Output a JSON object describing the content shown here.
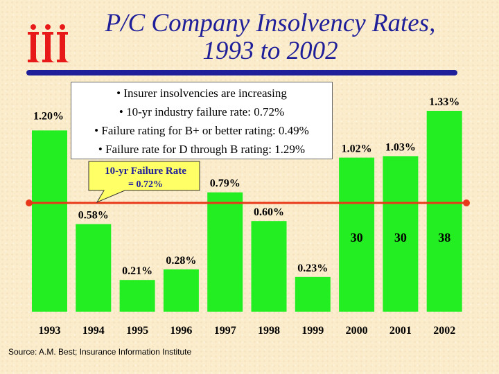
{
  "header": {
    "title_line1": "P/C Company Insolvency Rates,",
    "title_line2": "1993 to 2002",
    "logo_icon": "iii-logo-icon",
    "logo_color": "#e81919",
    "title_color": "#1f1f99"
  },
  "bullets": [
    "• Insurer insolvencies are increasing",
    "• 10-yr industry failure rate: 0.72%",
    "• Failure rating for B+ or better rating: 0.49%",
    "• Failure rate for D through B rating: 1.29%"
  ],
  "callout": {
    "line1": "10-yr Failure Rate",
    "line2": "= 0.72%"
  },
  "source": "Source:  A.M. Best; Insurance Information Institute",
  "chart_data": {
    "type": "bar",
    "categories": [
      "1993",
      "1994",
      "1995",
      "1996",
      "1997",
      "1998",
      "1999",
      "2000",
      "2001",
      "2002"
    ],
    "values": [
      1.2,
      0.58,
      0.21,
      0.28,
      0.79,
      0.6,
      0.23,
      1.02,
      1.03,
      1.33
    ],
    "value_labels": [
      "1.20%",
      "0.58%",
      "0.21%",
      "0.28%",
      "0.79%",
      "0.60%",
      "0.23%",
      "1.02%",
      "1.03%",
      "1.33%"
    ],
    "count_labels": {
      "2000": "30",
      "2001": "30",
      "2002": "38"
    },
    "reference_line": {
      "value": 0.72
    },
    "bar_color": "#22ee22",
    "line_color": "#e83a1a",
    "ylim": [
      0,
      1.33
    ]
  }
}
